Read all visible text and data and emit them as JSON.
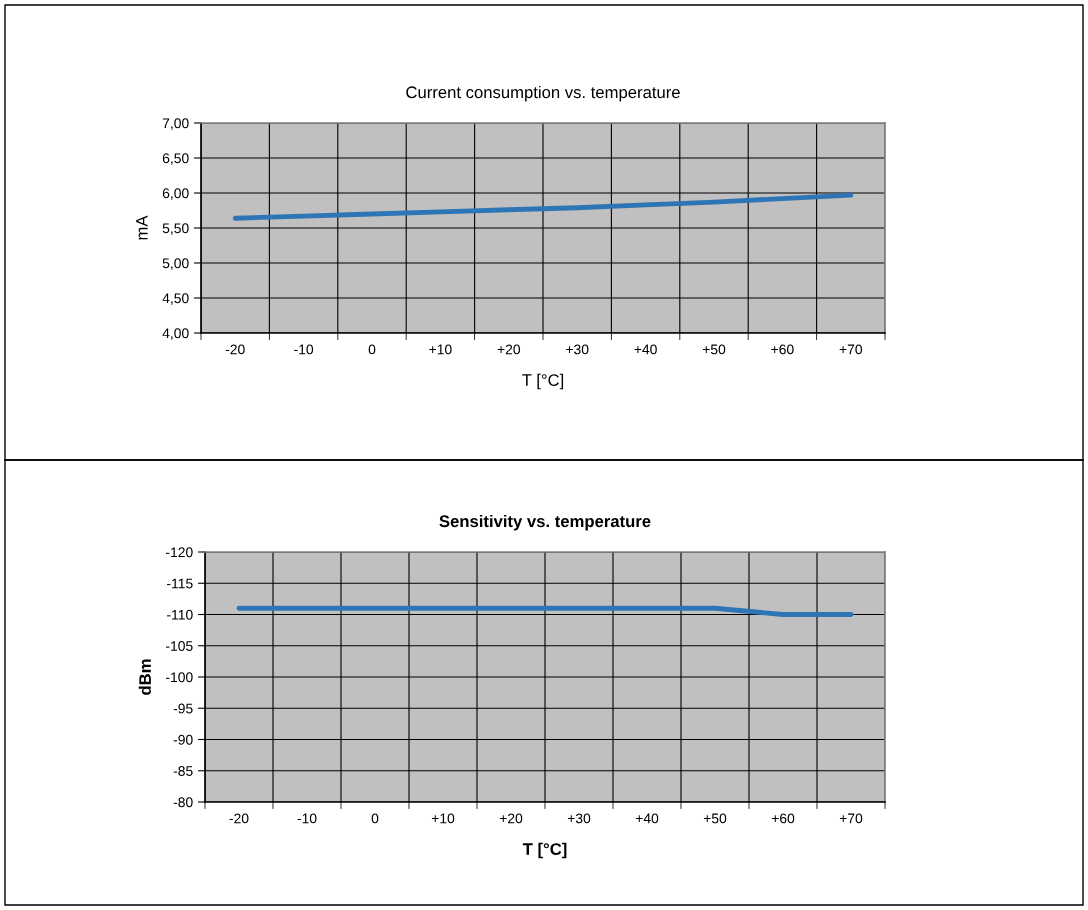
{
  "chart_data": [
    {
      "type": "line",
      "title": "Current consumption vs. temperature",
      "xlabel": "T [°C]",
      "ylabel": "mA",
      "categories": [
        "-20",
        "-10",
        "0",
        "+10",
        "+20",
        "+30",
        "+40",
        "+50",
        "+60",
        "+70"
      ],
      "series": [
        {
          "color": "#2e75b6",
          "values": [
            5.64,
            5.67,
            5.7,
            5.73,
            5.76,
            5.79,
            5.83,
            5.87,
            5.92,
            5.97
          ]
        }
      ],
      "ylim": [
        4.0,
        7.0
      ],
      "yticks": [
        {
          "value": 4.0,
          "label": "4,00"
        },
        {
          "value": 4.5,
          "label": "4,50"
        },
        {
          "value": 5.0,
          "label": "5,00"
        },
        {
          "value": 5.5,
          "label": "5,50"
        },
        {
          "value": 6.0,
          "label": "6,00"
        },
        {
          "value": 6.5,
          "label": "6,50"
        },
        {
          "value": 7.0,
          "label": "7,00"
        }
      ],
      "grid": true,
      "marker": "none",
      "line_style": "solid"
    },
    {
      "type": "line",
      "title": "Sensitivity vs. temperature",
      "xlabel": "T [°C]",
      "ylabel": "dBm",
      "categories": [
        "-20",
        "-10",
        "0",
        "+10",
        "+20",
        "+30",
        "+40",
        "+50",
        "+60",
        "+70"
      ],
      "series": [
        {
          "color": "#2e75b6",
          "values": [
            -111,
            -111,
            -111,
            -111,
            -111,
            -111,
            -111,
            -111,
            -110,
            -110
          ]
        }
      ],
      "ylim": [
        -80,
        -120
      ],
      "yticks": [
        -120,
        -115,
        -110,
        -105,
        -100,
        -95,
        -90,
        -85,
        -80
      ],
      "grid": true,
      "marker": "none",
      "line_style": "solid"
    }
  ]
}
